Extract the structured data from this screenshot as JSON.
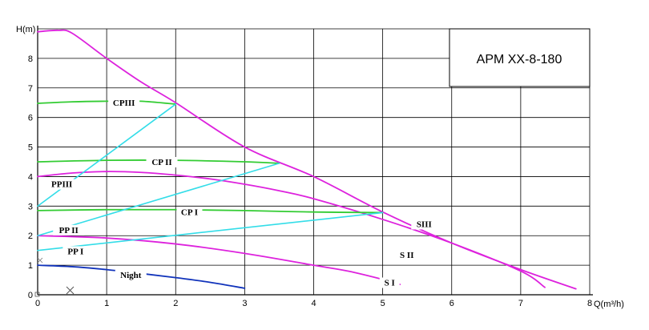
{
  "chart_data": {
    "type": "line",
    "title": "",
    "model": "APM XX-8-180",
    "xlabel": "Q(m³/h)",
    "ylabel": "H(m)",
    "xlim": [
      0,
      8
    ],
    "ylim": [
      0,
      9
    ],
    "x_ticks": [
      "0",
      "1",
      "2",
      "3",
      "4",
      "5",
      "6",
      "7",
      "8"
    ],
    "y_ticks": [
      "0",
      "1",
      "2",
      "3",
      "4",
      "5",
      "6",
      "7",
      "8"
    ],
    "grid": true,
    "colors": {
      "speed_curves": "#dd22dd",
      "constant_pressure": "#33cc33",
      "proportional_pressure": "#33dde8",
      "night": "#1133bb"
    },
    "series": [
      {
        "name": "SIII",
        "group": "speed_curves",
        "x": [
          0,
          0.3,
          0.5,
          1,
          1.5,
          2,
          3,
          4,
          5,
          6,
          7,
          7.8
        ],
        "y": [
          8.9,
          8.95,
          8.85,
          8.0,
          7.2,
          6.5,
          5.0,
          4.0,
          2.8,
          1.75,
          0.85,
          0.2
        ]
      },
      {
        "name": "SII",
        "group": "speed_curves",
        "x": [
          0,
          0.5,
          1,
          1.5,
          2,
          2.5,
          3,
          3.5,
          4,
          5,
          6,
          7,
          7.35
        ],
        "y": [
          4.0,
          4.12,
          4.17,
          4.14,
          4.05,
          3.92,
          3.74,
          3.52,
          3.25,
          2.55,
          1.75,
          0.8,
          0.25
        ]
      },
      {
        "name": "SI",
        "group": "speed_curves",
        "x": [
          0,
          1,
          2,
          3,
          4,
          4.5,
          5,
          5.25
        ],
        "y": [
          2.0,
          1.92,
          1.72,
          1.4,
          1.0,
          0.8,
          0.52,
          0.35
        ]
      },
      {
        "name": "CPIII",
        "group": "constant_pressure",
        "x": [
          0,
          0.5,
          1,
          1.5,
          2
        ],
        "y": [
          6.48,
          6.53,
          6.55,
          6.55,
          6.45
        ]
      },
      {
        "name": "CPII",
        "group": "constant_pressure",
        "x": [
          0,
          1,
          2,
          3,
          3.5
        ],
        "y": [
          4.5,
          4.55,
          4.55,
          4.5,
          4.45
        ]
      },
      {
        "name": "CPI",
        "group": "constant_pressure",
        "x": [
          0,
          1,
          2,
          3,
          4,
          5
        ],
        "y": [
          2.85,
          2.88,
          2.88,
          2.85,
          2.8,
          2.78
        ]
      },
      {
        "name": "PPIII",
        "group": "proportional_pressure",
        "x": [
          0,
          2
        ],
        "y": [
          3.0,
          6.45
        ]
      },
      {
        "name": "PPII",
        "group": "proportional_pressure",
        "x": [
          0,
          3.5
        ],
        "y": [
          2.0,
          4.45
        ]
      },
      {
        "name": "PPI",
        "group": "proportional_pressure",
        "x": [
          0,
          5
        ],
        "y": [
          1.5,
          2.78
        ]
      },
      {
        "name": "Night",
        "group": "night",
        "x": [
          0,
          0.5,
          1,
          1.5,
          2,
          2.5,
          3
        ],
        "y": [
          1.0,
          0.95,
          0.85,
          0.72,
          0.58,
          0.42,
          0.22
        ]
      }
    ],
    "label_anchors": [
      {
        "text": "CPIII",
        "x": 1.25,
        "y": 6.5
      },
      {
        "text": "CP II",
        "x": 1.8,
        "y": 4.5
      },
      {
        "text": "CP I",
        "x": 2.2,
        "y": 2.8
      },
      {
        "text": "PPIII",
        "x": 0.35,
        "y": 3.75
      },
      {
        "text": "PP II",
        "x": 0.45,
        "y": 2.2
      },
      {
        "text": "PP I",
        "x": 0.55,
        "y": 1.48
      },
      {
        "text": "Night",
        "x": 1.35,
        "y": 0.68
      },
      {
        "text": "SIII",
        "x": 5.6,
        "y": 2.4
      },
      {
        "text": "S II",
        "x": 5.35,
        "y": 1.35
      },
      {
        "text": "S I",
        "x": 5.1,
        "y": 0.42
      }
    ]
  }
}
